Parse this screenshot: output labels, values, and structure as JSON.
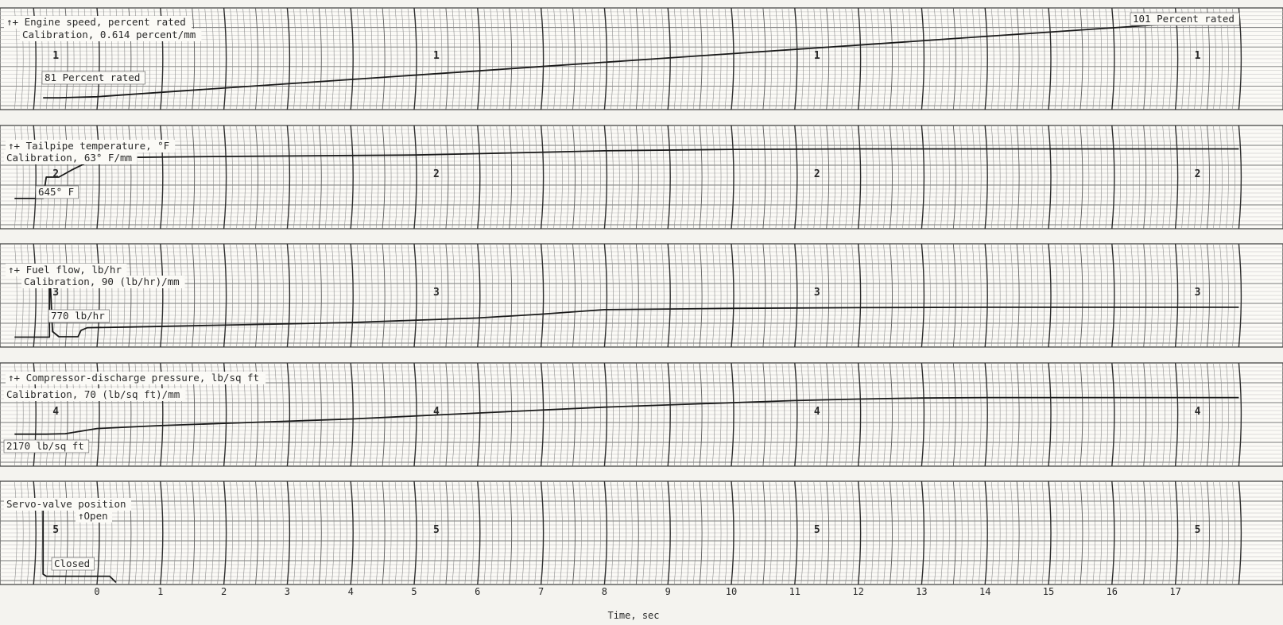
{
  "chart_data": {
    "type": "line",
    "xlabel": "Time, sec",
    "xlim": [
      -1.3,
      18.0
    ],
    "xticks": [
      0,
      1,
      2,
      3,
      4,
      5,
      6,
      7,
      8,
      9,
      10,
      11,
      12,
      13,
      14,
      15,
      16,
      17
    ],
    "grid": true,
    "channels": [
      {
        "name": "engine-speed",
        "labels": [
          "↑+ Engine speed, percent rated",
          "Calibration, 0.614 percent/mm"
        ],
        "annotations": [
          "81 Percent rated",
          "101 Percent rated"
        ],
        "channel_number": "1",
        "ylim": [
          78,
          104
        ],
        "x": [
          -0.85,
          -0.8,
          -0.6,
          -0.6,
          0.0,
          1.0,
          2.0,
          3.0,
          4.0,
          5.0,
          6.0,
          7.0,
          8.0,
          9.0,
          10.0,
          11.0,
          12.0,
          13.0,
          14.0,
          15.0,
          16.0,
          17.0,
          18.0
        ],
        "y": [
          81,
          81,
          81,
          81,
          81.3,
          82.4,
          83.5,
          84.6,
          85.7,
          86.8,
          87.9,
          89.0,
          90.1,
          91.2,
          92.3,
          93.4,
          94.5,
          95.6,
          96.7,
          97.8,
          98.9,
          100.0,
          101.0
        ]
      },
      {
        "name": "tailpipe-temperature",
        "labels": [
          "↑+ Tailpipe temperature, °F",
          "Calibration, 63° F/mm"
        ],
        "annotations": [
          "645° F"
        ],
        "channel_number": "2",
        "ylim": [
          0,
          2200
        ],
        "x": [
          -1.3,
          -0.85,
          -0.8,
          -0.6,
          -0.4,
          -0.1,
          0.5,
          2.0,
          4.0,
          5.0,
          6.0,
          8.0,
          10.0,
          12.0,
          14.0,
          16.0,
          18.0
        ],
        "y": [
          645,
          645,
          1100,
          1100,
          1250,
          1450,
          1520,
          1540,
          1560,
          1570,
          1600,
          1660,
          1690,
          1700,
          1700,
          1700,
          1700
        ]
      },
      {
        "name": "fuel-flow",
        "labels": [
          "↑+ Fuel flow, lb/hr",
          "Calibration, 90 (lb/hr)/mm"
        ],
        "annotations": [
          "770 lb/hr"
        ],
        "channel_number": "3",
        "ylim": [
          0,
          8000
        ],
        "x": [
          -1.3,
          -0.75,
          -0.75,
          -0.7,
          -0.6,
          -0.45,
          -0.3,
          -0.25,
          -0.15,
          0.5,
          2.0,
          4.0,
          6.0,
          7.0,
          8.0,
          9.0,
          10.0,
          12.0,
          14.0,
          16.0,
          18.0
        ],
        "y": [
          770,
          770,
          6400,
          1200,
          800,
          800,
          800,
          1300,
          1500,
          1550,
          1700,
          1900,
          2250,
          2550,
          2900,
          2950,
          3000,
          3050,
          3080,
          3080,
          3080
        ]
      },
      {
        "name": "compressor-discharge-pressure",
        "labels": [
          "↑+ Compressor-discharge pressure, lb/sq ft",
          "Calibration, 70 (lb/sq ft)/mm"
        ],
        "annotations": [
          "2170 lb/sq ft"
        ],
        "channel_number": "4",
        "ylim": [
          0,
          7000
        ],
        "x": [
          -1.3,
          -0.8,
          -0.5,
          0.0,
          1.0,
          2.0,
          3.0,
          4.0,
          5.0,
          6.0,
          7.0,
          8.0,
          9.0,
          10.0,
          11.0,
          12.0,
          13.0,
          14.0,
          15.0,
          16.0,
          17.0,
          18.0
        ],
        "y": [
          2170,
          2170,
          2200,
          2550,
          2750,
          2900,
          3050,
          3200,
          3400,
          3600,
          3800,
          4000,
          4150,
          4300,
          4450,
          4550,
          4620,
          4650,
          4650,
          4650,
          4650,
          4650
        ]
      },
      {
        "name": "servo-valve-position",
        "labels": [
          "Servo-valve position",
          "↑Open"
        ],
        "annotations": [
          "Closed"
        ],
        "channel_number": "5",
        "ylim": [
          0,
          100
        ],
        "x": [
          -0.85,
          -0.85,
          -0.8,
          0.0,
          0.2,
          0.3
        ],
        "y": [
          80,
          10,
          8,
          8,
          8,
          2
        ]
      }
    ]
  }
}
